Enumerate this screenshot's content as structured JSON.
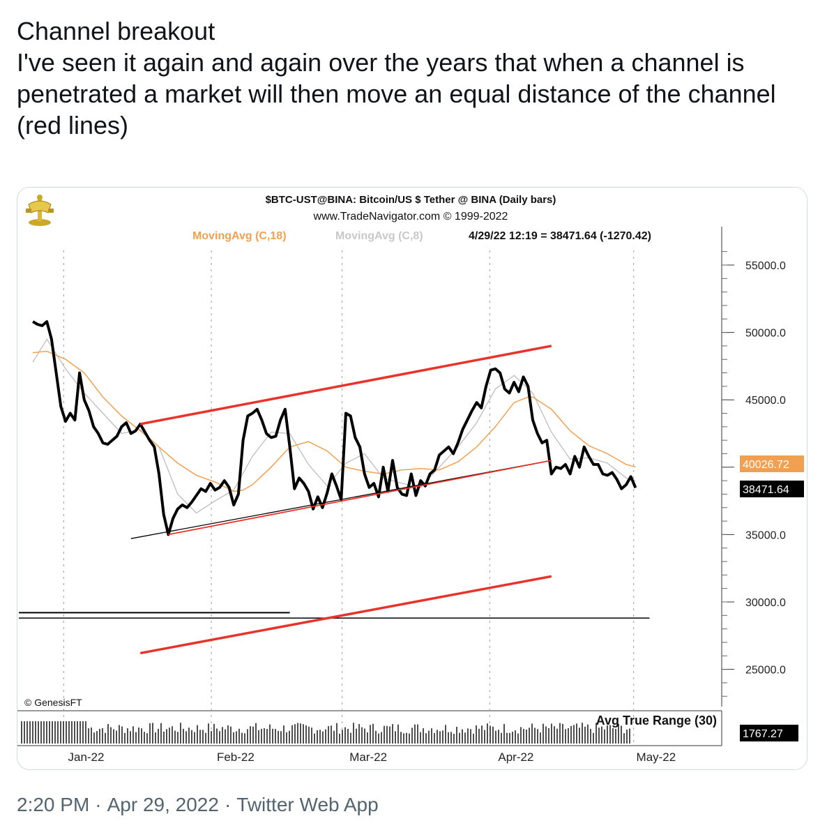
{
  "tweet": {
    "text": "Channel breakout\nI've seen it again and again over the years that when a channel is penetrated a market will then move an equal distance of the channel (red lines)",
    "time": "2:20 PM",
    "date": "Apr 29, 2022",
    "source": "Twitter Web App"
  },
  "chart_data": {
    "type": "line",
    "title": "$BTC-UST@BINA:  Bitcoin/US $ Tether @ BINA  (Daily bars)",
    "subtitle": "www.TradeNavigator.com © 1999-2022",
    "legend": [
      {
        "name": "MovingAvg (C,18)",
        "color": "#f0a050"
      },
      {
        "name": "MovingAvg (C,8)",
        "color": "#bdbdbd"
      }
    ],
    "status_text": "4/29/22 12:19 = 38471.64 (-1270.42)",
    "copyright": "© GenesisFT",
    "indicator_label": "Avg True Range (30)",
    "indicator_value": "1767.27",
    "last_price_label": "38471.64",
    "ma18_label": "40026.72",
    "y_ticks": [
      "55000.0",
      "50000.0",
      "45000.0",
      "40000.0",
      "35000.0",
      "30000.0",
      "25000.0"
    ],
    "x_ticks": [
      "Jan-22",
      "Feb-22",
      "Mar-22",
      "Apr-22",
      "May-22"
    ],
    "ylim": [
      21800,
      57200
    ],
    "colors": {
      "price": "#000000",
      "channel": "#e8332a",
      "ma18": "#f0a050",
      "ma8": "#bdbdbd"
    },
    "series": {
      "price": [
        [
          1.5,
          50800
        ],
        [
          2,
          50600
        ],
        [
          2.5,
          50500
        ],
        [
          3,
          50800
        ],
        [
          3.5,
          49500
        ],
        [
          4,
          47000
        ],
        [
          4.5,
          44500
        ],
        [
          5,
          43400
        ],
        [
          5.5,
          44000
        ],
        [
          6,
          43500
        ],
        [
          6.5,
          47000
        ],
        [
          7,
          45000
        ],
        [
          7.5,
          44200
        ],
        [
          8,
          43000
        ],
        [
          8.5,
          42500
        ],
        [
          9,
          41800
        ],
        [
          9.5,
          41700
        ],
        [
          10,
          42000
        ],
        [
          10.5,
          42300
        ],
        [
          11,
          43000
        ],
        [
          11.5,
          43300
        ],
        [
          12,
          42500
        ],
        [
          12.5,
          42700
        ],
        [
          13,
          43200
        ],
        [
          13.5,
          42600
        ],
        [
          14,
          42000
        ],
        [
          14.5,
          41500
        ],
        [
          15,
          39500
        ],
        [
          15.5,
          36500
        ],
        [
          16,
          35000
        ],
        [
          16.5,
          36200
        ],
        [
          17,
          36900
        ],
        [
          17.5,
          37200
        ],
        [
          18,
          37000
        ],
        [
          18.5,
          37400
        ],
        [
          19,
          37900
        ],
        [
          19.5,
          38400
        ],
        [
          20,
          38200
        ],
        [
          20.5,
          38800
        ],
        [
          21,
          38300
        ],
        [
          21.5,
          38500
        ],
        [
          22,
          39000
        ],
        [
          22.5,
          38500
        ],
        [
          23,
          37200
        ],
        [
          23.5,
          38000
        ],
        [
          24,
          42000
        ],
        [
          24.5,
          43800
        ],
        [
          25,
          44000
        ],
        [
          25.5,
          44300
        ],
        [
          26,
          43500
        ],
        [
          26.5,
          42500
        ],
        [
          27,
          42200
        ],
        [
          27.5,
          42300
        ],
        [
          28,
          43500
        ],
        [
          28.5,
          44300
        ],
        [
          29,
          41500
        ],
        [
          29.5,
          38400
        ],
        [
          30,
          39200
        ],
        [
          30.5,
          38800
        ],
        [
          31,
          38200
        ],
        [
          31.5,
          36900
        ],
        [
          32,
          37800
        ],
        [
          32.5,
          37000
        ],
        [
          33,
          38100
        ],
        [
          33.5,
          39500
        ],
        [
          34,
          38600
        ],
        [
          34.5,
          37600
        ],
        [
          35,
          44000
        ],
        [
          35.5,
          43800
        ],
        [
          36,
          42200
        ],
        [
          36.5,
          41500
        ],
        [
          37,
          39500
        ],
        [
          37.5,
          38500
        ],
        [
          38,
          38800
        ],
        [
          38.5,
          37800
        ],
        [
          39,
          40000
        ],
        [
          39.5,
          38200
        ],
        [
          40,
          40500
        ],
        [
          40.5,
          38500
        ],
        [
          41,
          38000
        ],
        [
          41.5,
          37900
        ],
        [
          42,
          39500
        ],
        [
          42.5,
          37900
        ],
        [
          43,
          39000
        ],
        [
          43.5,
          38600
        ],
        [
          44,
          39500
        ],
        [
          44.5,
          39800
        ],
        [
          45,
          40900
        ],
        [
          45.5,
          41200
        ],
        [
          46,
          41500
        ],
        [
          46.5,
          41000
        ],
        [
          47,
          41800
        ],
        [
          47.5,
          42800
        ],
        [
          48,
          43500
        ],
        [
          48.5,
          44200
        ],
        [
          49,
          44800
        ],
        [
          49.5,
          44400
        ],
        [
          50,
          46000
        ],
        [
          50.5,
          47200
        ],
        [
          51,
          47300
        ],
        [
          51.5,
          47000
        ],
        [
          52,
          45800
        ],
        [
          52.5,
          45500
        ],
        [
          53,
          46300
        ],
        [
          53.5,
          45600
        ],
        [
          54,
          46700
        ],
        [
          54.5,
          46000
        ],
        [
          55,
          43500
        ],
        [
          55.5,
          42500
        ],
        [
          56,
          41800
        ],
        [
          56.5,
          42000
        ],
        [
          57,
          39500
        ],
        [
          57.5,
          40000
        ],
        [
          58,
          39900
        ],
        [
          58.5,
          40200
        ],
        [
          59,
          39500
        ],
        [
          59.5,
          40800
        ],
        [
          60,
          40000
        ],
        [
          60.5,
          41500
        ],
        [
          61,
          40800
        ],
        [
          61.5,
          40200
        ],
        [
          62,
          40200
        ],
        [
          62.5,
          39500
        ],
        [
          63,
          39400
        ],
        [
          63.5,
          39600
        ],
        [
          64,
          39100
        ],
        [
          64.5,
          38400
        ],
        [
          65,
          38700
        ],
        [
          65.5,
          39300
        ],
        [
          66,
          38471.64
        ]
      ],
      "ma18": [
        [
          1.5,
          48500
        ],
        [
          3,
          48600
        ],
        [
          5,
          48000
        ],
        [
          7,
          47000
        ],
        [
          9,
          45200
        ],
        [
          11,
          43800
        ],
        [
          13,
          42700
        ],
        [
          15,
          41500
        ],
        [
          17,
          40300
        ],
        [
          19,
          39400
        ],
        [
          21,
          38900
        ],
        [
          23,
          38200
        ],
        [
          24,
          38300
        ],
        [
          25,
          38700
        ],
        [
          27,
          40000
        ],
        [
          29,
          41500
        ],
        [
          31,
          41900
        ],
        [
          33,
          41200
        ],
        [
          35,
          40000
        ],
        [
          37,
          39700
        ],
        [
          39,
          39500
        ],
        [
          41,
          39800
        ],
        [
          43,
          39900
        ],
        [
          45,
          39800
        ],
        [
          47,
          40400
        ],
        [
          49,
          41500
        ],
        [
          51,
          43000
        ],
        [
          53,
          44800
        ],
        [
          54.5,
          45200
        ],
        [
          55,
          45200
        ],
        [
          57,
          44300
        ],
        [
          59,
          42700
        ],
        [
          61,
          41600
        ],
        [
          63,
          41000
        ],
        [
          65,
          40200
        ],
        [
          66,
          40026.72
        ]
      ],
      "ma8": [
        [
          1.5,
          47800
        ],
        [
          3,
          49500
        ],
        [
          5,
          47300
        ],
        [
          7,
          45500
        ],
        [
          9,
          44000
        ],
        [
          11,
          42500
        ],
        [
          13,
          42800
        ],
        [
          15,
          41500
        ],
        [
          17,
          38000
        ],
        [
          19,
          36600
        ],
        [
          21,
          37500
        ],
        [
          23,
          38300
        ],
        [
          25,
          40800
        ],
        [
          27,
          42600
        ],
        [
          29,
          42500
        ],
        [
          31,
          40200
        ],
        [
          33,
          38600
        ],
        [
          35,
          40300
        ],
        [
          37,
          41000
        ],
        [
          39,
          39200
        ],
        [
          41,
          38800
        ],
        [
          43,
          38500
        ],
        [
          45,
          40000
        ],
        [
          47,
          41500
        ],
        [
          49,
          43300
        ],
        [
          51,
          45800
        ],
        [
          53,
          46800
        ],
        [
          55,
          45500
        ],
        [
          57,
          42600
        ],
        [
          59,
          40600
        ],
        [
          61,
          40700
        ],
        [
          63,
          40300
        ],
        [
          65,
          39200
        ],
        [
          66,
          39000
        ]
      ]
    },
    "drawn_lines": {
      "upper_channel": [
        [
          13,
          43200
        ],
        [
          57,
          49000
        ]
      ],
      "lower_channel": [
        [
          16,
          35000
        ],
        [
          57,
          40500
        ]
      ],
      "projection": [
        [
          13,
          26200
        ],
        [
          57,
          31900
        ]
      ],
      "support_black": [
        [
          12,
          34700
        ],
        [
          57,
          40500
        ]
      ],
      "horizontal_level": [
        [
          0,
          28800
        ],
        [
          67.5,
          28800
        ]
      ],
      "horizontal_double": [
        [
          0,
          29000
        ],
        [
          29,
          29000
        ]
      ]
    }
  }
}
